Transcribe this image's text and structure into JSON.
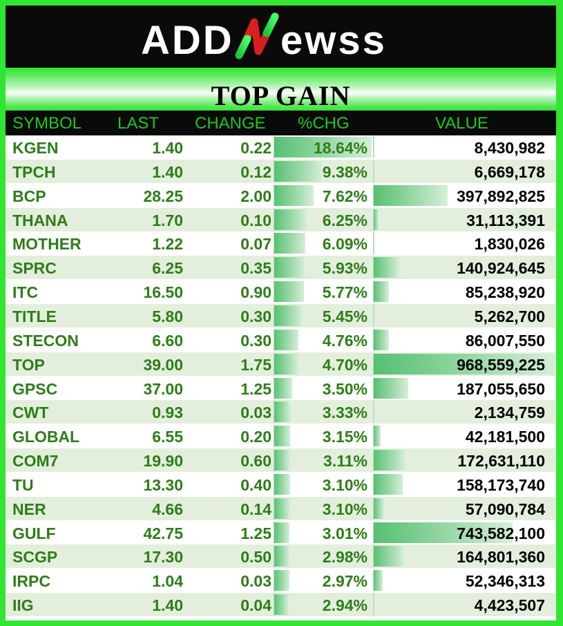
{
  "logo": {
    "text": "ADDNEWSS"
  },
  "title": "TOP GAIN",
  "chart_data": {
    "type": "table",
    "title": "TOP GAIN",
    "columns": [
      "SYMBOL",
      "LAST",
      "CHANGE",
      "%CHG",
      "VALUE"
    ],
    "rows": [
      {
        "symbol": "KGEN",
        "last": "1.40",
        "change": "0.22",
        "pct": "18.64%",
        "pct_num": 18.64,
        "value": "8,430,982",
        "value_num": 8430982
      },
      {
        "symbol": "TPCH",
        "last": "1.40",
        "change": "0.12",
        "pct": "9.38%",
        "pct_num": 9.38,
        "value": "6,669,178",
        "value_num": 6669178
      },
      {
        "symbol": "BCP",
        "last": "28.25",
        "change": "2.00",
        "pct": "7.62%",
        "pct_num": 7.62,
        "value": "397,892,825",
        "value_num": 397892825
      },
      {
        "symbol": "THANA",
        "last": "1.70",
        "change": "0.10",
        "pct": "6.25%",
        "pct_num": 6.25,
        "value": "31,113,391",
        "value_num": 31113391
      },
      {
        "symbol": "MOTHER",
        "last": "1.22",
        "change": "0.07",
        "pct": "6.09%",
        "pct_num": 6.09,
        "value": "1,830,026",
        "value_num": 1830026
      },
      {
        "symbol": "SPRC",
        "last": "6.25",
        "change": "0.35",
        "pct": "5.93%",
        "pct_num": 5.93,
        "value": "140,924,645",
        "value_num": 140924645
      },
      {
        "symbol": "ITC",
        "last": "16.50",
        "change": "0.90",
        "pct": "5.77%",
        "pct_num": 5.77,
        "value": "85,238,920",
        "value_num": 85238920
      },
      {
        "symbol": "TITLE",
        "last": "5.80",
        "change": "0.30",
        "pct": "5.45%",
        "pct_num": 5.45,
        "value": "5,262,700",
        "value_num": 5262700
      },
      {
        "symbol": "STECON",
        "last": "6.60",
        "change": "0.30",
        "pct": "4.76%",
        "pct_num": 4.76,
        "value": "86,007,550",
        "value_num": 86007550
      },
      {
        "symbol": "TOP",
        "last": "39.00",
        "change": "1.75",
        "pct": "4.70%",
        "pct_num": 4.7,
        "value": "968,559,225",
        "value_num": 968559225
      },
      {
        "symbol": "GPSC",
        "last": "37.00",
        "change": "1.25",
        "pct": "3.50%",
        "pct_num": 3.5,
        "value": "187,055,650",
        "value_num": 187055650
      },
      {
        "symbol": "CWT",
        "last": "0.93",
        "change": "0.03",
        "pct": "3.33%",
        "pct_num": 3.33,
        "value": "2,134,759",
        "value_num": 2134759
      },
      {
        "symbol": "GLOBAL",
        "last": "6.55",
        "change": "0.20",
        "pct": "3.15%",
        "pct_num": 3.15,
        "value": "42,181,500",
        "value_num": 42181500
      },
      {
        "symbol": "COM7",
        "last": "19.90",
        "change": "0.60",
        "pct": "3.11%",
        "pct_num": 3.11,
        "value": "172,631,110",
        "value_num": 172631110
      },
      {
        "symbol": "TU",
        "last": "13.30",
        "change": "0.40",
        "pct": "3.10%",
        "pct_num": 3.1,
        "value": "158,173,740",
        "value_num": 158173740
      },
      {
        "symbol": "NER",
        "last": "4.66",
        "change": "0.14",
        "pct": "3.10%",
        "pct_num": 3.1,
        "value": "57,090,784",
        "value_num": 57090784
      },
      {
        "symbol": "GULF",
        "last": "42.75",
        "change": "1.25",
        "pct": "3.01%",
        "pct_num": 3.01,
        "value": "743,582,100",
        "value_num": 743582100
      },
      {
        "symbol": "SCGP",
        "last": "17.30",
        "change": "0.50",
        "pct": "2.98%",
        "pct_num": 2.98,
        "value": "164,801,360",
        "value_num": 164801360
      },
      {
        "symbol": "IRPC",
        "last": "1.04",
        "change": "0.03",
        "pct": "2.97%",
        "pct_num": 2.97,
        "value": "52,346,313",
        "value_num": 52346313
      },
      {
        "symbol": "IIG",
        "last": "1.40",
        "change": "0.04",
        "pct": "2.94%",
        "pct_num": 2.94,
        "value": "4,423,507",
        "value_num": 4423507
      }
    ]
  },
  "colors": {
    "accent_green": "#33e533",
    "text_green": "#2e7d18",
    "header_text": "#1ec81e",
    "bar_green": "#55c070",
    "header_bg": "#0a0a0a"
  }
}
